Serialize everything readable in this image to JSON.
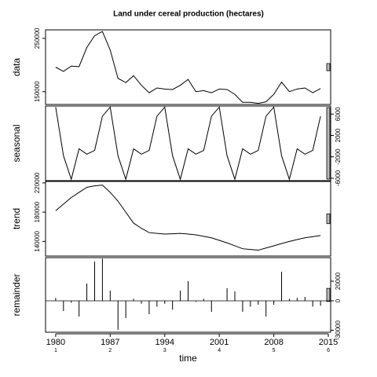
{
  "chart_data": [
    {
      "type": "line",
      "title": "Land under cereal production (hectares)",
      "ylabel": "data",
      "tick_side": "left",
      "x": [
        1980,
        1981,
        1982,
        1983,
        1984,
        1985,
        1986,
        1987,
        1988,
        1989,
        1990,
        1991,
        1992,
        1993,
        1994,
        1995,
        1996,
        1997,
        1998,
        1999,
        2000,
        2001,
        2002,
        2003,
        2004,
        2005,
        2006,
        2007,
        2008,
        2009,
        2010,
        2011,
        2012,
        2013,
        2014
      ],
      "values": [
        196000,
        188000,
        198000,
        197000,
        233000,
        255000,
        263000,
        228000,
        175000,
        167000,
        180000,
        162000,
        148000,
        157000,
        155000,
        154000,
        162000,
        173000,
        150000,
        152000,
        148000,
        155000,
        154000,
        145000,
        130000,
        130000,
        128000,
        131000,
        145000,
        168000,
        150000,
        155000,
        157000,
        148000,
        156000
      ],
      "color": "#000000",
      "xlim": [
        1978.7,
        2015.3
      ],
      "ylim": [
        126000,
        266000
      ],
      "yticks": [
        150000,
        250000
      ]
    },
    {
      "type": "line",
      "ylabel": "seasonal",
      "tick_side": "right",
      "x": [
        1980,
        1981,
        1982,
        1983,
        1984,
        1985,
        1986,
        1987,
        1988,
        1989,
        1990,
        1991,
        1992,
        1993,
        1994,
        1995,
        1996,
        1997,
        1998,
        1999,
        2000,
        2001,
        2002,
        2003,
        2004,
        2005,
        2006,
        2007,
        2008,
        2009,
        2010,
        2011,
        2012,
        2013,
        2014
      ],
      "values": [
        7300,
        -1800,
        -6200,
        -500,
        -1500,
        -800,
        5600,
        7300,
        -1800,
        -6200,
        -500,
        -1500,
        -800,
        5600,
        7300,
        -1800,
        -6200,
        -500,
        -1500,
        -800,
        5600,
        7300,
        -1800,
        -6200,
        -500,
        -1500,
        -800,
        5600,
        7300,
        -1800,
        -6200,
        -500,
        -1500,
        -800,
        5600
      ],
      "color": "#000000",
      "xlim": [
        1978.7,
        2015.3
      ],
      "ylim": [
        -6450,
        7500
      ],
      "yticks": [
        -6000,
        -2000,
        2000,
        6000
      ]
    },
    {
      "type": "line",
      "ylabel": "trend",
      "tick_side": "left",
      "x": [
        1980,
        1981,
        1982,
        1983,
        1984,
        1985,
        1986,
        1987,
        1988,
        1989,
        1990,
        1991,
        1992,
        1993,
        1994,
        1995,
        1996,
        1997,
        1998,
        1999,
        2000,
        2001,
        2002,
        2003,
        2004,
        2005,
        2006,
        2007,
        2008,
        2009,
        2010,
        2011,
        2012,
        2013,
        2014
      ],
      "values": [
        182000,
        191000,
        200000,
        207000,
        214000,
        216000,
        217000,
        207000,
        195000,
        180000,
        165000,
        158000,
        152000,
        151000,
        150000,
        150500,
        151000,
        150000,
        149000,
        147000,
        145000,
        141500,
        138000,
        134000,
        130000,
        129000,
        128000,
        131000,
        134000,
        137000,
        140000,
        142500,
        145000,
        146500,
        148000
      ],
      "color": "#000000",
      "xlim": [
        1978.7,
        2015.3
      ],
      "ylim": [
        120000,
        222000
      ],
      "yticks": [
        140000,
        180000,
        220000
      ]
    },
    {
      "type": "bar",
      "ylabel": "remainder",
      "tick_side": "right",
      "xlabel": "time",
      "x": [
        1980,
        1981,
        1982,
        1983,
        1984,
        1985,
        1986,
        1987,
        1988,
        1989,
        1990,
        1991,
        1992,
        1993,
        1994,
        1995,
        1996,
        1997,
        1998,
        1999,
        2000,
        2001,
        2002,
        2003,
        2004,
        2005,
        2006,
        2007,
        2008,
        2009,
        2010,
        2011,
        2012,
        2013,
        2014
      ],
      "values": [
        3000,
        -10400,
        -2000,
        -16000,
        17600,
        40000,
        43000,
        10400,
        -29600,
        -17600,
        2000,
        -3000,
        -13600,
        -6000,
        -3000,
        -9000,
        10400,
        20000,
        -1000,
        2000,
        -11200,
        0,
        12800,
        9600,
        -11200,
        -6000,
        -4000,
        -16000,
        -4000,
        29600,
        2000,
        3000,
        4000,
        -6000,
        -5000
      ],
      "color": "#000000",
      "xlim": [
        1978.7,
        2015.3
      ],
      "ylim": [
        -32000,
        44000
      ],
      "yticks": [
        -30000,
        0,
        20000
      ],
      "xticks": [
        1980,
        1987,
        1994,
        2001,
        2008,
        2015
      ],
      "cycle_labels": [
        1,
        2,
        3,
        4,
        5,
        6
      ]
    }
  ]
}
